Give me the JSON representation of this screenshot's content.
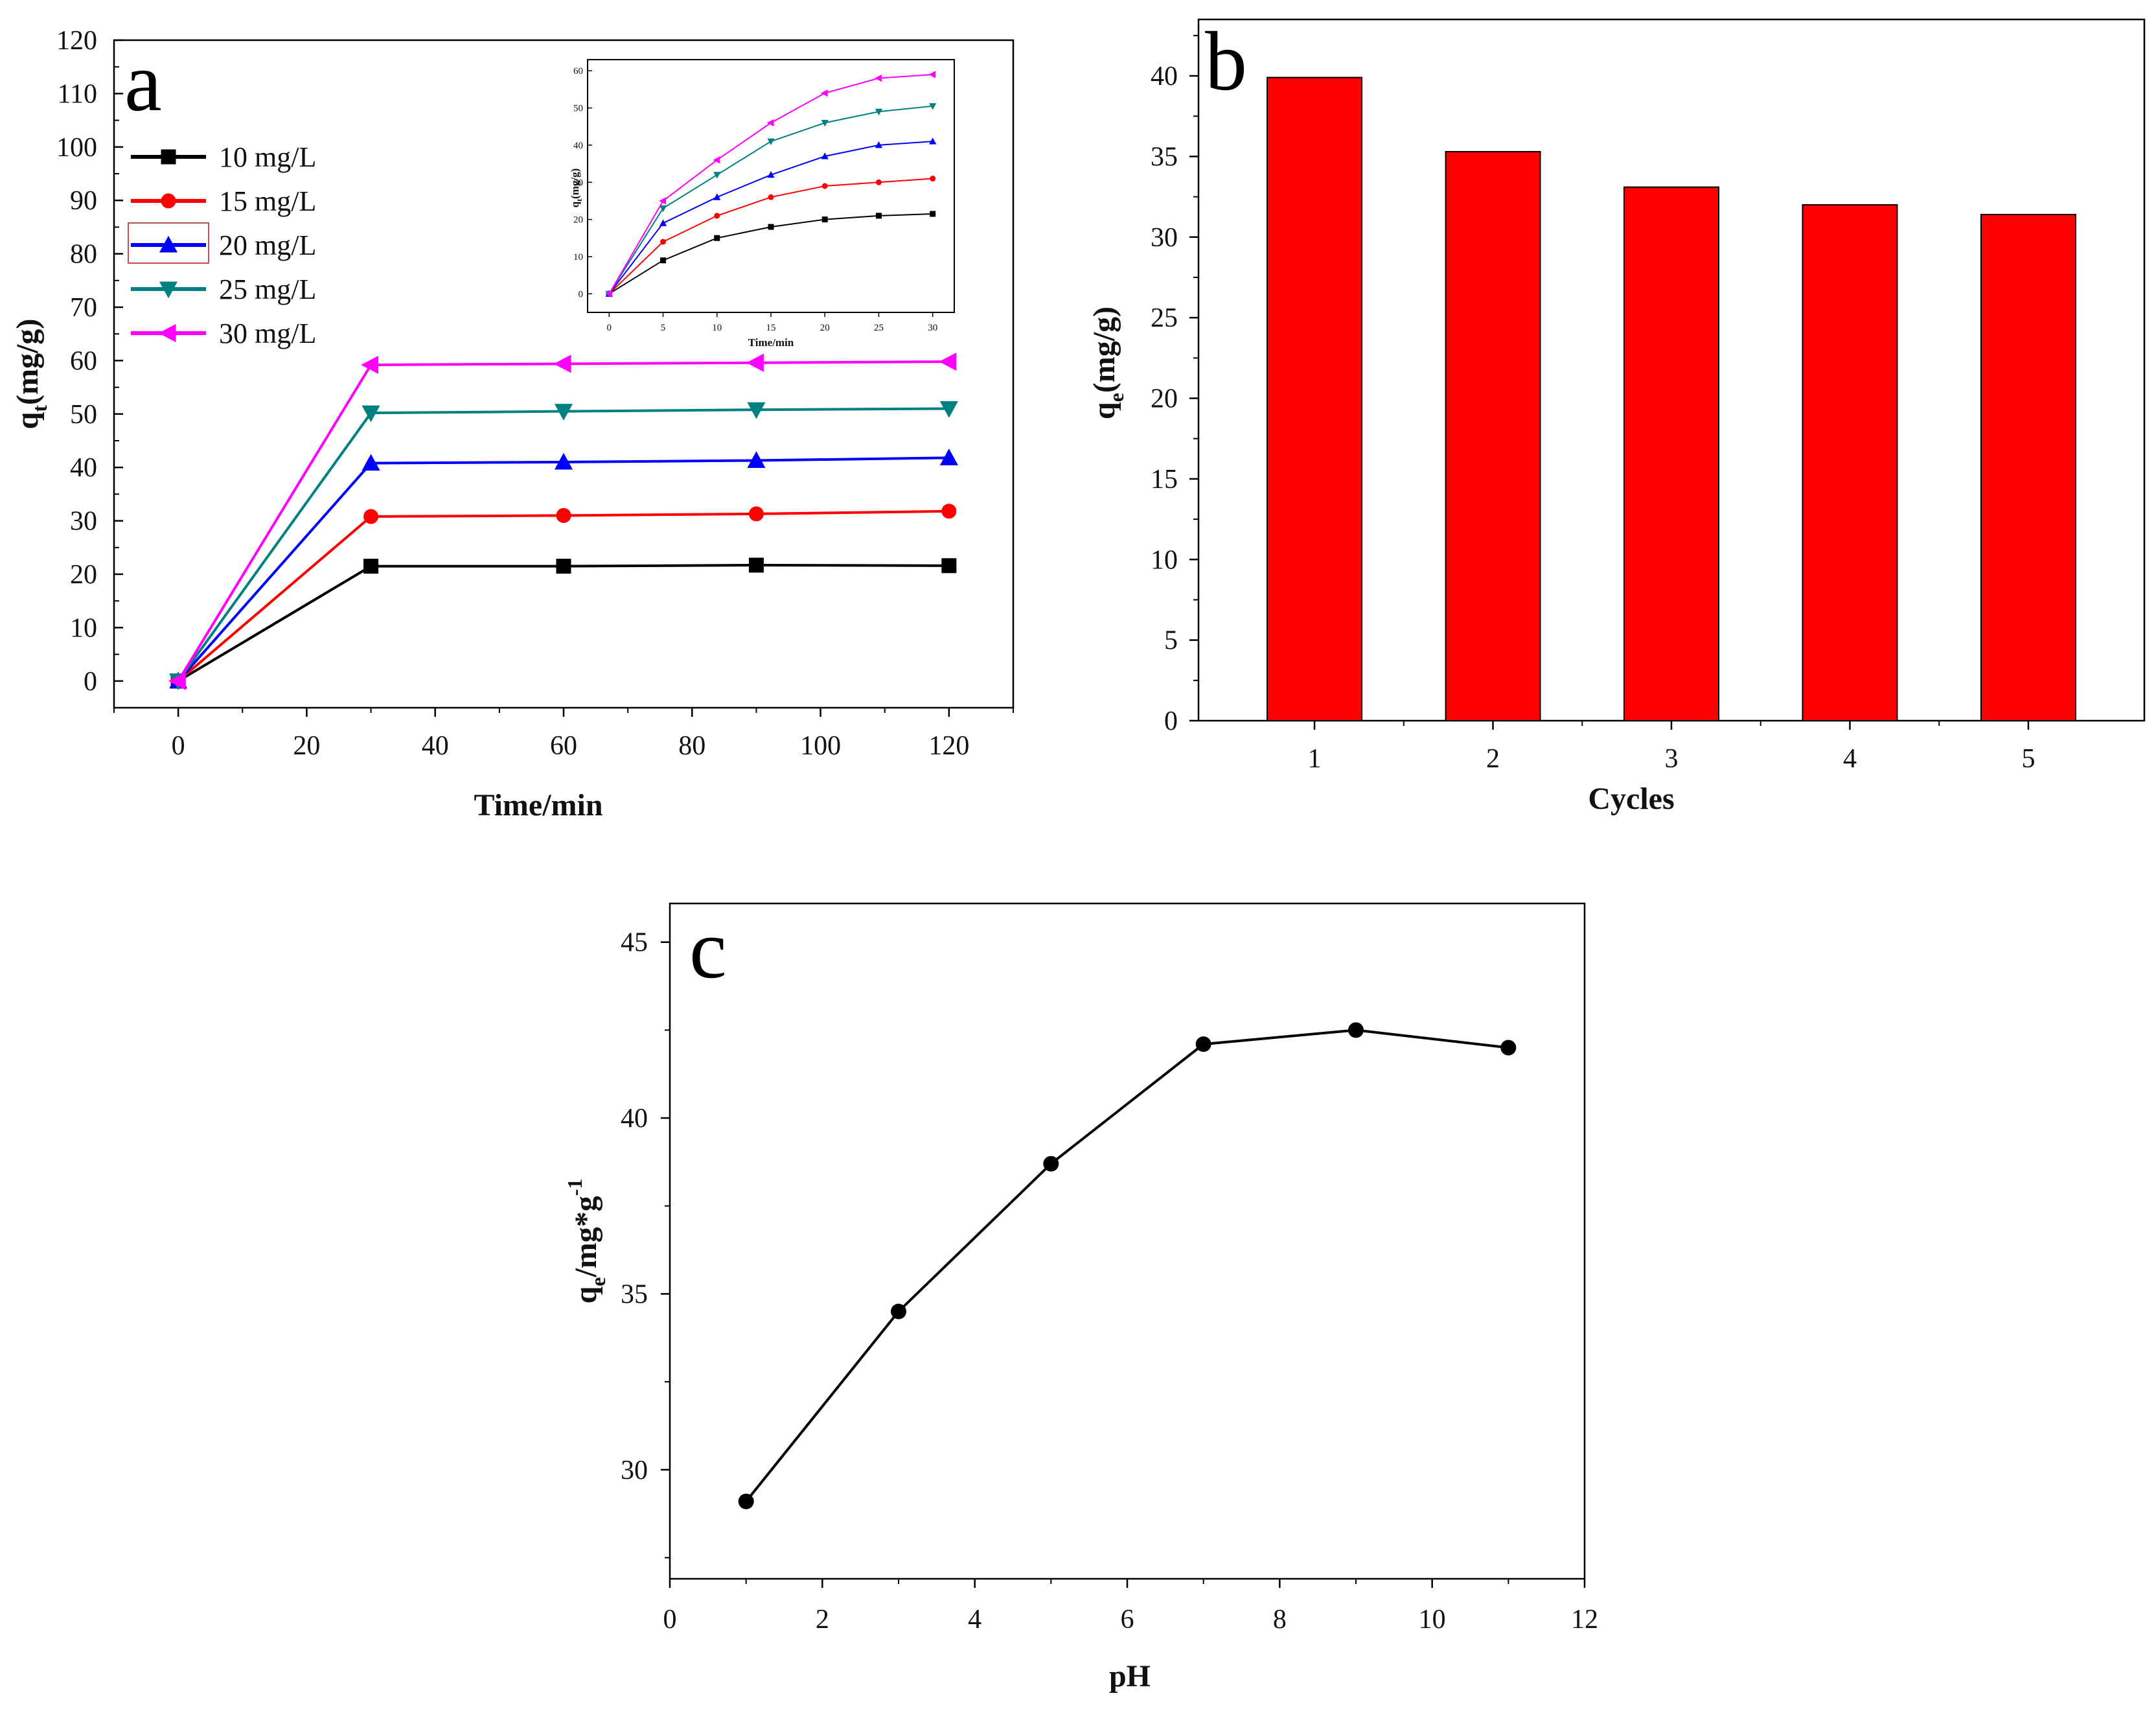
{
  "chart_data": [
    {
      "panel": "a",
      "type": "line",
      "xlabel": "Time/min",
      "ylabel_main": "q",
      "ylabel_sub": "t",
      "ylabel_unit": "(mg/g)",
      "xlim": [
        -10,
        130
      ],
      "ylim": [
        -5,
        120
      ],
      "xticks": [
        0,
        20,
        40,
        60,
        80,
        100,
        120
      ],
      "yticks": [
        0,
        10,
        20,
        30,
        40,
        50,
        60,
        70,
        80,
        90,
        100,
        110,
        120
      ],
      "x": [
        0,
        30,
        60,
        90,
        120
      ],
      "series": [
        {
          "name": "10 mg/L",
          "color": "#000000",
          "marker": "square",
          "values": [
            0,
            21.5,
            21.5,
            21.7,
            21.6
          ]
        },
        {
          "name": "15 mg/L",
          "color": "#ff0000",
          "marker": "circle",
          "values": [
            0,
            30.8,
            31.0,
            31.3,
            31.8
          ]
        },
        {
          "name": "20 mg/L",
          "color": "#0000ff",
          "marker": "triangle-up",
          "values": [
            0,
            40.8,
            41.0,
            41.3,
            41.8
          ]
        },
        {
          "name": "25 mg/L",
          "color": "#008080",
          "marker": "triangle-down",
          "values": [
            0,
            50.2,
            50.5,
            50.8,
            51.0
          ]
        },
        {
          "name": "30 mg/L",
          "color": "#ff00ff",
          "marker": "triangle-left",
          "values": [
            0,
            59.2,
            59.4,
            59.6,
            59.8
          ]
        }
      ],
      "inset": {
        "xlabel": "Time/min",
        "ylabel_main": "q",
        "ylabel_sub": "t",
        "ylabel_unit": "(mg/g)",
        "xlim": [
          -2,
          32
        ],
        "ylim": [
          -5,
          63
        ],
        "xticks": [
          0,
          5,
          10,
          15,
          20,
          25,
          30
        ],
        "yticks": [
          0,
          10,
          20,
          30,
          40,
          50,
          60
        ],
        "x": [
          0,
          5,
          10,
          15,
          20,
          25,
          30
        ],
        "series": [
          {
            "name": "10 mg/L",
            "color": "#000000",
            "marker": "square",
            "values": [
              0,
              9,
              15,
              18,
              20,
              21,
              21.5
            ]
          },
          {
            "name": "15 mg/L",
            "color": "#ff0000",
            "marker": "circle",
            "values": [
              0,
              14,
              21,
              26,
              29,
              30,
              31
            ]
          },
          {
            "name": "20 mg/L",
            "color": "#0000ff",
            "marker": "triangle-up",
            "values": [
              0,
              19,
              26,
              32,
              37,
              40,
              41
            ]
          },
          {
            "name": "25 mg/L",
            "color": "#008080",
            "marker": "triangle-down",
            "values": [
              0,
              23,
              32,
              41,
              46,
              49,
              50.5
            ]
          },
          {
            "name": "30 mg/L",
            "color": "#ff00ff",
            "marker": "triangle-left",
            "values": [
              0,
              25,
              36,
              46,
              54,
              58,
              59
            ]
          }
        ]
      }
    },
    {
      "panel": "b",
      "type": "bar",
      "xlabel": "Cycles",
      "ylabel_main": "q",
      "ylabel_sub": "e",
      "ylabel_unit": "(mg/g)",
      "categories": [
        "1",
        "2",
        "3",
        "4",
        "5"
      ],
      "values": [
        39.9,
        35.3,
        33.1,
        32.0,
        31.4
      ],
      "bar_color": "#ff0000",
      "ylim": [
        0,
        43.5
      ],
      "yticks": [
        0,
        5,
        10,
        15,
        20,
        25,
        30,
        35,
        40
      ]
    },
    {
      "panel": "c",
      "type": "line",
      "xlabel": "pH",
      "ylabel_main": "q",
      "ylabel_sub": "e",
      "ylabel_unit": "/mg*g",
      "ylabel_sup": "-1",
      "x": [
        1,
        3,
        5,
        7,
        9,
        11
      ],
      "values": [
        29.1,
        34.5,
        38.7,
        42.1,
        42.5,
        42.0
      ],
      "xlim": [
        0,
        12
      ],
      "ylim": [
        26.9,
        46.1
      ],
      "xticks": [
        0,
        2,
        4,
        6,
        8,
        10,
        12
      ],
      "yticks": [
        30,
        35,
        40,
        45
      ]
    }
  ]
}
